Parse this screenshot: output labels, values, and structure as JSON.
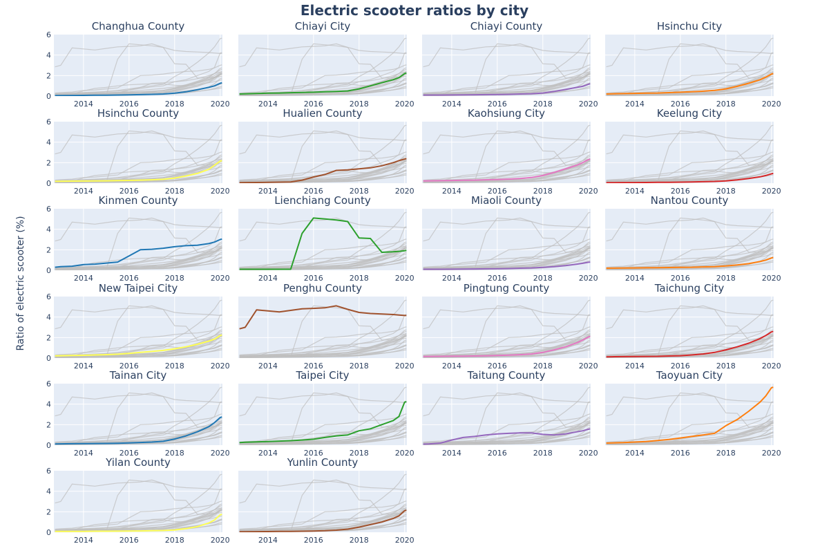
{
  "chart_data": {
    "type": "line",
    "layout": "small-multiples",
    "title": "Electric scooter ratios by city",
    "ylabel": "Ratio of electric scooter (%)",
    "xlabel": "",
    "xlim": [
      2012.7,
      2020.1
    ],
    "ylim": [
      0,
      6
    ],
    "xticks": [
      2014,
      2016,
      2018,
      2020
    ],
    "yticks": [
      0,
      2,
      4,
      6
    ],
    "grid": true,
    "legend": "none",
    "x": [
      2012.75,
      2013.0,
      2013.5,
      2014.0,
      2014.5,
      2015.0,
      2015.5,
      2016.0,
      2016.5,
      2017.0,
      2017.5,
      2018.0,
      2018.5,
      2019.0,
      2019.5,
      2019.75,
      2020.0,
      2020.08
    ],
    "series": [
      {
        "name": "Changhua County",
        "color": "#1f77b4",
        "values": [
          0.05,
          0.05,
          0.06,
          0.07,
          0.08,
          0.09,
          0.1,
          0.12,
          0.14,
          0.17,
          0.2,
          0.28,
          0.42,
          0.62,
          0.85,
          1.0,
          1.25,
          1.3
        ]
      },
      {
        "name": "Chiayi City",
        "color": "#2ca02c",
        "values": [
          0.2,
          0.22,
          0.25,
          0.28,
          0.3,
          0.33,
          0.36,
          0.38,
          0.42,
          0.45,
          0.5,
          0.7,
          1.0,
          1.3,
          1.6,
          1.8,
          2.2,
          2.25
        ]
      },
      {
        "name": "Chiayi County",
        "color": "#9467bd",
        "values": [
          0.1,
          0.1,
          0.1,
          0.11,
          0.12,
          0.13,
          0.14,
          0.15,
          0.17,
          0.2,
          0.23,
          0.3,
          0.45,
          0.65,
          0.85,
          0.95,
          1.15,
          1.2
        ]
      },
      {
        "name": "Hsinchu City",
        "color": "#ff7f0e",
        "values": [
          0.2,
          0.22,
          0.24,
          0.26,
          0.28,
          0.3,
          0.34,
          0.38,
          0.42,
          0.48,
          0.55,
          0.7,
          0.95,
          1.25,
          1.6,
          1.85,
          2.15,
          2.2
        ]
      },
      {
        "name": "Hsinchu County",
        "color": "#ffff55",
        "values": [
          0.18,
          0.19,
          0.2,
          0.21,
          0.22,
          0.23,
          0.25,
          0.27,
          0.3,
          0.33,
          0.38,
          0.5,
          0.7,
          0.95,
          1.35,
          1.75,
          2.15,
          2.2
        ]
      },
      {
        "name": "Hualien County",
        "color": "#a0522d",
        "values": [
          0.05,
          0.06,
          0.07,
          0.08,
          0.1,
          0.12,
          0.3,
          0.6,
          0.85,
          1.25,
          1.3,
          1.4,
          1.5,
          1.7,
          2.0,
          2.2,
          2.35,
          2.4
        ]
      },
      {
        "name": "Kaohsiung City",
        "color": "#e377c2",
        "values": [
          0.22,
          0.23,
          0.24,
          0.26,
          0.28,
          0.3,
          0.33,
          0.36,
          0.4,
          0.46,
          0.55,
          0.75,
          1.05,
          1.4,
          1.75,
          2.0,
          2.3,
          2.35
        ]
      },
      {
        "name": "Keelung City",
        "color": "#d62728",
        "values": [
          0.05,
          0.05,
          0.06,
          0.06,
          0.07,
          0.08,
          0.09,
          0.1,
          0.12,
          0.14,
          0.17,
          0.22,
          0.32,
          0.45,
          0.62,
          0.75,
          0.92,
          0.95
        ]
      },
      {
        "name": "Kinmen County",
        "color": "#1f77b4",
        "values": [
          0.3,
          0.35,
          0.4,
          0.55,
          0.6,
          0.7,
          0.8,
          1.4,
          2.0,
          2.05,
          2.15,
          2.3,
          2.4,
          2.45,
          2.6,
          2.75,
          3.0,
          3.05
        ]
      },
      {
        "name": "Lienchiang County",
        "color": "#2ca02c",
        "values": [
          0.1,
          0.1,
          0.1,
          0.1,
          0.1,
          0.1,
          3.6,
          5.1,
          5.0,
          4.9,
          4.75,
          3.15,
          3.1,
          1.75,
          1.8,
          1.85,
          1.9,
          1.95
        ]
      },
      {
        "name": "Miaoli County",
        "color": "#9467bd",
        "values": [
          0.1,
          0.1,
          0.1,
          0.11,
          0.12,
          0.13,
          0.14,
          0.15,
          0.17,
          0.2,
          0.23,
          0.28,
          0.36,
          0.46,
          0.6,
          0.68,
          0.78,
          0.8
        ]
      },
      {
        "name": "Nantou County",
        "color": "#ff7f0e",
        "values": [
          0.2,
          0.21,
          0.22,
          0.23,
          0.24,
          0.25,
          0.27,
          0.29,
          0.3,
          0.33,
          0.36,
          0.42,
          0.52,
          0.65,
          0.85,
          1.0,
          1.2,
          1.25
        ]
      },
      {
        "name": "New Taipei City",
        "color": "#ffff55",
        "values": [
          0.22,
          0.23,
          0.25,
          0.27,
          0.3,
          0.33,
          0.38,
          0.45,
          0.55,
          0.65,
          0.75,
          0.9,
          1.1,
          1.35,
          1.65,
          1.85,
          2.2,
          2.25
        ]
      },
      {
        "name": "Penghu County",
        "color": "#a0522d",
        "values": [
          2.85,
          3.0,
          4.7,
          4.6,
          4.5,
          4.65,
          4.8,
          4.85,
          4.9,
          5.1,
          4.75,
          4.45,
          4.35,
          4.3,
          4.25,
          4.2,
          4.15,
          4.15
        ]
      },
      {
        "name": "Pingtung County",
        "color": "#e377c2",
        "values": [
          0.15,
          0.16,
          0.17,
          0.18,
          0.19,
          0.2,
          0.22,
          0.25,
          0.28,
          0.33,
          0.4,
          0.55,
          0.8,
          1.1,
          1.5,
          1.75,
          2.05,
          2.1
        ]
      },
      {
        "name": "Taichung City",
        "color": "#d62728",
        "values": [
          0.12,
          0.13,
          0.14,
          0.15,
          0.16,
          0.17,
          0.2,
          0.23,
          0.3,
          0.4,
          0.55,
          0.8,
          1.1,
          1.45,
          1.9,
          2.2,
          2.55,
          2.6
        ]
      },
      {
        "name": "Tainan City",
        "color": "#1f77b4",
        "values": [
          0.12,
          0.13,
          0.14,
          0.15,
          0.16,
          0.17,
          0.19,
          0.22,
          0.26,
          0.3,
          0.38,
          0.6,
          0.9,
          1.3,
          1.8,
          2.2,
          2.7,
          2.75
        ]
      },
      {
        "name": "Taipei City",
        "color": "#2ca02c",
        "values": [
          0.25,
          0.28,
          0.32,
          0.36,
          0.4,
          0.44,
          0.5,
          0.58,
          0.75,
          0.9,
          1.0,
          1.4,
          1.6,
          2.0,
          2.4,
          2.8,
          4.2,
          4.25
        ]
      },
      {
        "name": "Taitung County",
        "color": "#9467bd",
        "values": [
          0.1,
          0.12,
          0.2,
          0.5,
          0.75,
          0.85,
          1.0,
          1.1,
          1.15,
          1.2,
          1.2,
          1.05,
          1.0,
          1.1,
          1.3,
          1.4,
          1.55,
          1.6
        ]
      },
      {
        "name": "Taoyuan City",
        "color": "#ff7f0e",
        "values": [
          0.2,
          0.22,
          0.25,
          0.3,
          0.36,
          0.45,
          0.55,
          0.7,
          0.85,
          1.0,
          1.15,
          1.9,
          2.5,
          3.3,
          4.2,
          4.8,
          5.6,
          5.65
        ]
      },
      {
        "name": "Yilan County",
        "color": "#ffff55",
        "values": [
          0.08,
          0.08,
          0.09,
          0.09,
          0.1,
          0.1,
          0.11,
          0.12,
          0.13,
          0.15,
          0.17,
          0.22,
          0.35,
          0.55,
          0.9,
          1.2,
          1.7,
          1.75
        ]
      },
      {
        "name": "Yunlin County",
        "color": "#a0522d",
        "values": [
          0.05,
          0.05,
          0.06,
          0.07,
          0.08,
          0.09,
          0.1,
          0.12,
          0.15,
          0.2,
          0.3,
          0.5,
          0.75,
          1.0,
          1.35,
          1.6,
          2.1,
          2.15
        ]
      }
    ]
  }
}
